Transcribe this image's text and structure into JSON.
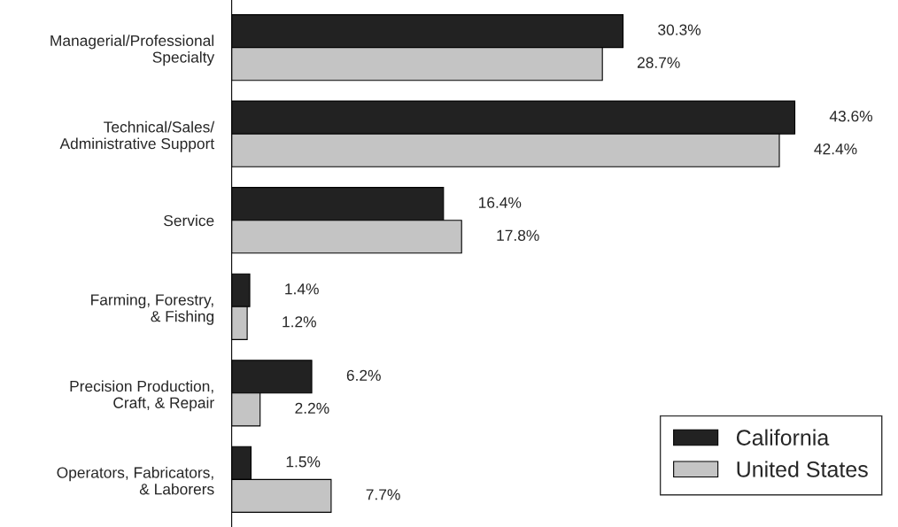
{
  "chart_data": {
    "type": "bar",
    "orientation": "horizontal",
    "categories": [
      "Managerial/Professional\nSpecialty",
      "Technical/Sales/\nAdministrative Support",
      "Service",
      "Farming, Forestry,\n& Fishing",
      "Precision Production,\nCraft, & Repair",
      "Operators, Fabricators,\n& Laborers"
    ],
    "series": [
      {
        "name": "California",
        "color": "#222222",
        "values": [
          30.3,
          43.6,
          16.4,
          1.4,
          6.2,
          1.5
        ],
        "value_labels": [
          "30.3%",
          "43.6%",
          "16.4%",
          "1.4%",
          "6.2%",
          "1.5%"
        ]
      },
      {
        "name": "United States",
        "color": "#c4c4c4",
        "values": [
          28.7,
          42.4,
          17.8,
          1.2,
          2.2,
          7.7
        ],
        "value_labels": [
          "28.7%",
          "42.4%",
          "17.8%",
          "1.2%",
          "2.2%",
          "7.7%"
        ]
      }
    ],
    "legend": "bottom right",
    "grid": false,
    "tick_labels": "y"
  }
}
